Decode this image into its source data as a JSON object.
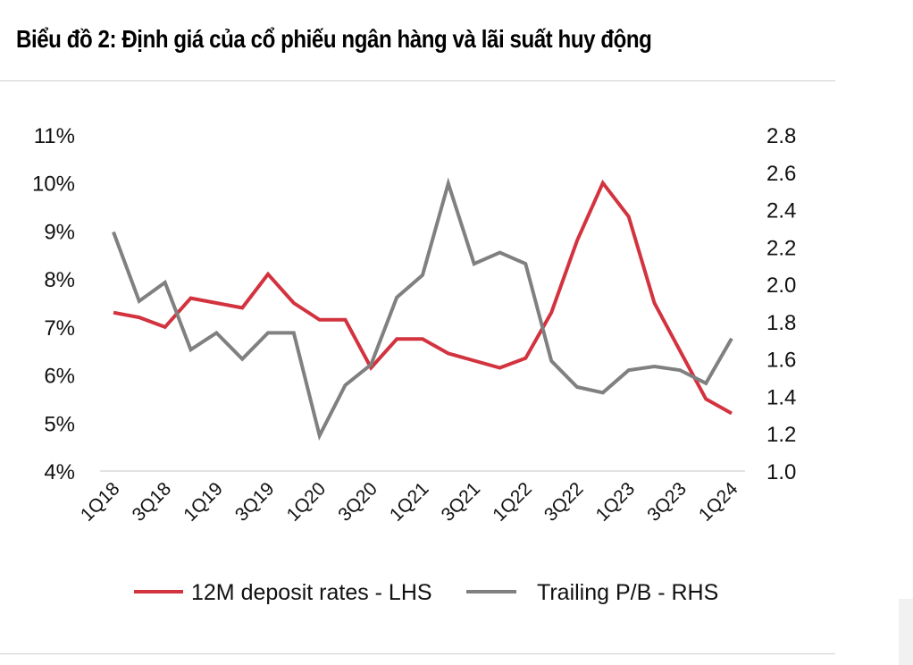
{
  "header": {
    "title": "Biểu đồ 2: Định giá của cổ phiếu ngân hàng và lãi suất huy động"
  },
  "chart_data": {
    "type": "line",
    "title": "Biểu đồ 2: Định giá của cổ phiếu ngân hàng và lãi suất huy động",
    "x": [
      "1Q18",
      "2Q18",
      "3Q18",
      "4Q18",
      "1Q19",
      "2Q19",
      "3Q19",
      "4Q19",
      "1Q20",
      "2Q20",
      "3Q20",
      "4Q20",
      "1Q21",
      "2Q21",
      "3Q21",
      "4Q21",
      "1Q22",
      "2Q22",
      "3Q22",
      "4Q22",
      "1Q23",
      "2Q23",
      "3Q23",
      "4Q23",
      "1Q24"
    ],
    "x_tick_labels": [
      "1Q18",
      "3Q18",
      "1Q19",
      "3Q19",
      "1Q20",
      "3Q20",
      "1Q21",
      "3Q21",
      "1Q22",
      "3Q22",
      "1Q23",
      "3Q23",
      "1Q24"
    ],
    "left_axis": {
      "ylim": [
        4,
        11
      ],
      "ticks": [
        "4%",
        "5%",
        "6%",
        "7%",
        "8%",
        "9%",
        "10%",
        "11%"
      ]
    },
    "right_axis": {
      "ylim": [
        1.0,
        2.8
      ],
      "ticks": [
        "1.0",
        "1.2",
        "1.4",
        "1.6",
        "1.8",
        "2.0",
        "2.2",
        "2.4",
        "2.6",
        "2.8"
      ]
    },
    "series": [
      {
        "name": "12M deposit rates - LHS",
        "axis": "left",
        "color": "#d2333f",
        "values": [
          7.3,
          7.2,
          7.0,
          7.6,
          7.5,
          7.4,
          8.1,
          7.5,
          7.15,
          7.15,
          6.15,
          6.75,
          6.75,
          6.45,
          6.3,
          6.15,
          6.35,
          7.3,
          8.8,
          10.0,
          9.3,
          7.5,
          6.5,
          5.5,
          5.2
        ]
      },
      {
        "name": "Trailing P/B - RHS",
        "axis": "right",
        "color": "#808080",
        "values": [
          2.28,
          1.91,
          2.01,
          1.65,
          1.74,
          1.6,
          1.74,
          1.74,
          1.19,
          1.46,
          1.57,
          1.93,
          2.05,
          2.54,
          2.11,
          2.17,
          2.11,
          1.59,
          1.45,
          1.42,
          1.54,
          1.56,
          1.54,
          1.47,
          1.71
        ]
      }
    ],
    "legend": {
      "position": "bottom"
    }
  }
}
